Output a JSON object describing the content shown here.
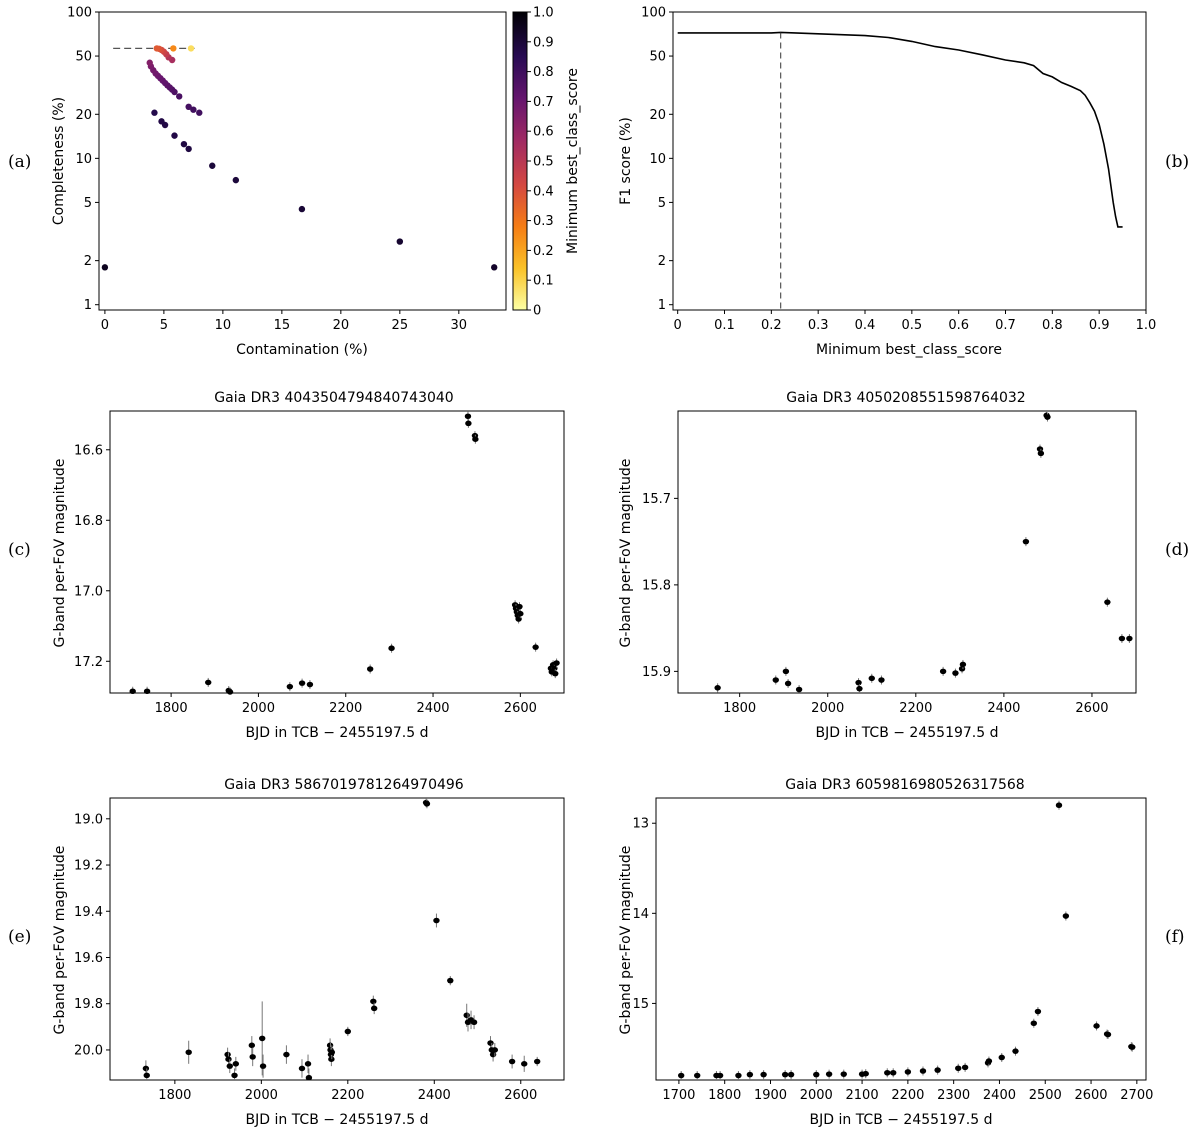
{
  "panel_labels": [
    "(a)",
    "(b)",
    "(c)",
    "(d)",
    "(e)",
    "(f)"
  ],
  "colors": {
    "axes": "#000000",
    "marker": "#000000",
    "errorbar": "#777777",
    "colormap": [
      "#fcffa4",
      "#fac228",
      "#f57d15",
      "#d44842",
      "#9f2a63",
      "#65156e",
      "#280b53",
      "#000004"
    ]
  },
  "chart_data": [
    {
      "id": "a",
      "type": "scatter",
      "title": "",
      "xlabel": "Contamination (%)",
      "ylabel": "Completeness (%)",
      "xlim": [
        -0.5,
        34
      ],
      "ylim": [
        0.92,
        100
      ],
      "yscale": "log",
      "xticks": [
        0,
        5,
        10,
        15,
        20,
        25,
        30
      ],
      "yticks": [
        1,
        2,
        5,
        10,
        20,
        50,
        100
      ],
      "reference_line": {
        "y": 56.4,
        "x": [
          0.7,
          7.6
        ],
        "style": "dashed"
      },
      "colorbar": {
        "label": "Minimum best_class_score",
        "range": [
          0,
          1
        ],
        "ticks": [
          "0",
          "0.1",
          "0.2",
          "0.3",
          "0.4",
          "0.5",
          "0.6",
          "0.7",
          "0.8",
          "0.9",
          "1.0"
        ]
      },
      "points": [
        {
          "x": 0,
          "y": 1.8,
          "c": 0.95
        },
        {
          "x": 33.0,
          "y": 1.8,
          "c": 0.93
        },
        {
          "x": 25.0,
          "y": 2.7,
          "c": 0.92
        },
        {
          "x": 16.7,
          "y": 4.5,
          "c": 0.91
        },
        {
          "x": 11.1,
          "y": 7.1,
          "c": 0.9
        },
        {
          "x": 9.1,
          "y": 8.9,
          "c": 0.9
        },
        {
          "x": 7.1,
          "y": 11.6,
          "c": 0.89
        },
        {
          "x": 6.7,
          "y": 12.5,
          "c": 0.89
        },
        {
          "x": 5.9,
          "y": 14.3,
          "c": 0.88
        },
        {
          "x": 5.1,
          "y": 16.9,
          "c": 0.88
        },
        {
          "x": 4.8,
          "y": 17.9,
          "c": 0.88
        },
        {
          "x": 4.2,
          "y": 20.5,
          "c": 0.87
        },
        {
          "x": 8.0,
          "y": 20.5,
          "c": 0.8
        },
        {
          "x": 7.5,
          "y": 21.5,
          "c": 0.8
        },
        {
          "x": 7.1,
          "y": 22.5,
          "c": 0.79
        },
        {
          "x": 6.3,
          "y": 26.5,
          "c": 0.78
        },
        {
          "x": 5.9,
          "y": 28.4,
          "c": 0.77
        },
        {
          "x": 5.7,
          "y": 29.5,
          "c": 0.76
        },
        {
          "x": 5.5,
          "y": 30.5,
          "c": 0.75
        },
        {
          "x": 5.3,
          "y": 31.5,
          "c": 0.74
        },
        {
          "x": 5.1,
          "y": 32.7,
          "c": 0.73
        },
        {
          "x": 4.9,
          "y": 34.0,
          "c": 0.72
        },
        {
          "x": 4.7,
          "y": 35.3,
          "c": 0.71
        },
        {
          "x": 4.5,
          "y": 36.6,
          "c": 0.7
        },
        {
          "x": 4.3,
          "y": 38.0,
          "c": 0.69
        },
        {
          "x": 4.1,
          "y": 40.0,
          "c": 0.68
        },
        {
          "x": 3.9,
          "y": 42.5,
          "c": 0.66
        },
        {
          "x": 3.8,
          "y": 45.0,
          "c": 0.64
        },
        {
          "x": 5.7,
          "y": 47.0,
          "c": 0.55
        },
        {
          "x": 5.4,
          "y": 49.0,
          "c": 0.52
        },
        {
          "x": 5.2,
          "y": 51.5,
          "c": 0.48
        },
        {
          "x": 5.0,
          "y": 53.5,
          "c": 0.45
        },
        {
          "x": 4.8,
          "y": 55.0,
          "c": 0.42
        },
        {
          "x": 4.6,
          "y": 56.0,
          "c": 0.4
        },
        {
          "x": 4.4,
          "y": 56.4,
          "c": 0.38
        },
        {
          "x": 5.8,
          "y": 56.4,
          "c": 0.26
        },
        {
          "x": 7.3,
          "y": 56.4,
          "c": 0.08
        }
      ]
    },
    {
      "id": "b",
      "type": "line",
      "title": "",
      "xlabel": "Minimum best_class_score",
      "ylabel": "F1 score (%)",
      "xlim": [
        -0.01,
        1.0
      ],
      "ylim": [
        0.92,
        100
      ],
      "yscale": "log",
      "xticks": [
        0,
        0.1,
        0.2,
        0.3,
        0.4,
        0.5,
        0.6,
        0.7,
        0.8,
        0.9,
        1.0
      ],
      "xticklabels": [
        "0",
        "0.1",
        "0.2",
        "0.3",
        "0.4",
        "0.5",
        "0.6",
        "0.7",
        "0.8",
        "0.9",
        "1.0"
      ],
      "yticks": [
        1,
        2,
        5,
        10,
        20,
        50,
        100
      ],
      "reference_line": {
        "x": 0.22,
        "style": "dashed"
      },
      "x": [
        0,
        0.05,
        0.1,
        0.15,
        0.2,
        0.22,
        0.25,
        0.3,
        0.35,
        0.4,
        0.45,
        0.5,
        0.55,
        0.6,
        0.65,
        0.7,
        0.74,
        0.76,
        0.78,
        0.8,
        0.82,
        0.84,
        0.86,
        0.87,
        0.88,
        0.89,
        0.9,
        0.91,
        0.92,
        0.93,
        0.935,
        0.94,
        0.95
      ],
      "y": [
        72,
        72,
        72,
        72,
        72,
        72.5,
        72,
        71,
        70,
        69,
        67,
        63,
        58,
        55,
        51,
        47,
        45,
        43,
        38,
        36,
        33,
        31,
        29,
        27,
        24,
        21,
        17,
        12.5,
        8.5,
        5.0,
        4.0,
        3.4,
        3.4
      ]
    },
    {
      "id": "c",
      "type": "scatter",
      "title": "Gaia DR3 4043504794840743040",
      "xlabel": "BJD in TCB − 2455197.5 d",
      "ylabel": "G-band per-FoV magnitude",
      "xlim": [
        1660,
        2700
      ],
      "ylim": [
        17.29,
        16.49
      ],
      "xticks": [
        1800,
        2000,
        2200,
        2400,
        2600
      ],
      "yticks": [
        16.6,
        16.8,
        17.0,
        17.2
      ],
      "yticklabels": [
        "16.6",
        "16.8",
        "17.0",
        "17.2"
      ],
      "points": [
        {
          "x": 1712,
          "y": 17.285
        },
        {
          "x": 1745,
          "y": 17.285
        },
        {
          "x": 1885,
          "y": 17.26
        },
        {
          "x": 1932,
          "y": 17.283
        },
        {
          "x": 1935,
          "y": 17.287
        },
        {
          "x": 2072,
          "y": 17.272
        },
        {
          "x": 2100,
          "y": 17.262
        },
        {
          "x": 2118,
          "y": 17.266
        },
        {
          "x": 2256,
          "y": 17.222
        },
        {
          "x": 2305,
          "y": 17.163
        },
        {
          "x": 2480,
          "y": 16.505
        },
        {
          "x": 2481,
          "y": 16.525
        },
        {
          "x": 2496,
          "y": 16.56
        },
        {
          "x": 2497,
          "y": 16.57
        },
        {
          "x": 2588,
          "y": 17.04
        },
        {
          "x": 2590,
          "y": 17.05
        },
        {
          "x": 2592,
          "y": 17.06
        },
        {
          "x": 2594,
          "y": 17.07
        },
        {
          "x": 2596,
          "y": 17.08
        },
        {
          "x": 2598,
          "y": 17.045
        },
        {
          "x": 2600,
          "y": 17.065
        },
        {
          "x": 2635,
          "y": 17.16
        },
        {
          "x": 2670,
          "y": 17.22
        },
        {
          "x": 2672,
          "y": 17.23
        },
        {
          "x": 2675,
          "y": 17.21
        },
        {
          "x": 2678,
          "y": 17.22
        },
        {
          "x": 2680,
          "y": 17.235
        },
        {
          "x": 2683,
          "y": 17.205
        }
      ]
    },
    {
      "id": "d",
      "type": "scatter",
      "title": "Gaia DR3 4050208551598764032",
      "xlabel": "BJD in TCB − 2455197.5 d",
      "ylabel": "G-band per-FoV magnitude",
      "xlim": [
        1660,
        2700
      ],
      "ylim": [
        15.925,
        15.599
      ],
      "xticks": [
        1800,
        2000,
        2200,
        2400,
        2600
      ],
      "yticks": [
        15.7,
        15.8,
        15.9
      ],
      "yticklabels": [
        "15.7",
        "15.8",
        "15.9"
      ],
      "points": [
        {
          "x": 1750,
          "y": 15.919
        },
        {
          "x": 1882,
          "y": 15.91
        },
        {
          "x": 1905,
          "y": 15.9
        },
        {
          "x": 1910,
          "y": 15.914
        },
        {
          "x": 1935,
          "y": 15.921
        },
        {
          "x": 2070,
          "y": 15.913
        },
        {
          "x": 2072,
          "y": 15.92
        },
        {
          "x": 2100,
          "y": 15.908
        },
        {
          "x": 2122,
          "y": 15.91
        },
        {
          "x": 2262,
          "y": 15.9
        },
        {
          "x": 2290,
          "y": 15.902
        },
        {
          "x": 2305,
          "y": 15.897
        },
        {
          "x": 2307,
          "y": 15.892
        },
        {
          "x": 2450,
          "y": 15.75
        },
        {
          "x": 2482,
          "y": 15.643
        },
        {
          "x": 2484,
          "y": 15.648
        },
        {
          "x": 2497,
          "y": 15.604
        },
        {
          "x": 2499,
          "y": 15.606
        },
        {
          "x": 2635,
          "y": 15.82
        },
        {
          "x": 2668,
          "y": 15.862
        },
        {
          "x": 2685,
          "y": 15.862
        }
      ]
    },
    {
      "id": "e",
      "type": "scatter",
      "title": "Gaia DR3 5867019781264970496",
      "xlabel": "BJD in TCB − 2455197.5 d",
      "ylabel": "G-band per-FoV magnitude",
      "xlim": [
        1650,
        2700
      ],
      "ylim": [
        20.13,
        18.91
      ],
      "xticks": [
        1800,
        2000,
        2200,
        2400,
        2600
      ],
      "yticks": [
        19.0,
        19.2,
        19.4,
        19.6,
        19.8,
        20.0
      ],
      "yticklabels": [
        "19.0",
        "19.2",
        "19.4",
        "19.6",
        "19.8",
        "20.0"
      ],
      "points": [
        {
          "x": 1733,
          "y": 20.08,
          "e": 0.035
        },
        {
          "x": 1735,
          "y": 20.11,
          "e": 0.03
        },
        {
          "x": 1832,
          "y": 20.01,
          "e": 0.05
        },
        {
          "x": 1922,
          "y": 20.02,
          "e": 0.03
        },
        {
          "x": 1924,
          "y": 20.04,
          "e": 0.03
        },
        {
          "x": 1927,
          "y": 20.07,
          "e": 0.03
        },
        {
          "x": 1938,
          "y": 20.11,
          "e": 0.03
        },
        {
          "x": 1941,
          "y": 20.06,
          "e": 0.03
        },
        {
          "x": 1978,
          "y": 19.98,
          "e": 0.04
        },
        {
          "x": 1980,
          "y": 20.03,
          "e": 0.04
        },
        {
          "x": 2002,
          "y": 19.95,
          "e": 0.16
        },
        {
          "x": 2004,
          "y": 20.07,
          "e": 0.05
        },
        {
          "x": 2058,
          "y": 20.02,
          "e": 0.04
        },
        {
          "x": 2094,
          "y": 20.08,
          "e": 0.04
        },
        {
          "x": 2108,
          "y": 20.06,
          "e": 0.04
        },
        {
          "x": 2110,
          "y": 20.12,
          "e": 0.04
        },
        {
          "x": 2159,
          "y": 19.98,
          "e": 0.03
        },
        {
          "x": 2160,
          "y": 20.0,
          "e": 0.03
        },
        {
          "x": 2161,
          "y": 20.02,
          "e": 0.03
        },
        {
          "x": 2162,
          "y": 20.04,
          "e": 0.03
        },
        {
          "x": 2163,
          "y": 20.01,
          "e": 0.03
        },
        {
          "x": 2200,
          "y": 19.92,
          "e": 0.02
        },
        {
          "x": 2259,
          "y": 19.79,
          "e": 0.025
        },
        {
          "x": 2261,
          "y": 19.82,
          "e": 0.025
        },
        {
          "x": 2381,
          "y": 18.93,
          "e": 0.015
        },
        {
          "x": 2383,
          "y": 18.935,
          "e": 0.015
        },
        {
          "x": 2405,
          "y": 19.44,
          "e": 0.03
        },
        {
          "x": 2437,
          "y": 19.7,
          "e": 0.02
        },
        {
          "x": 2475,
          "y": 19.85,
          "e": 0.05
        },
        {
          "x": 2478,
          "y": 19.88,
          "e": 0.04
        },
        {
          "x": 2485,
          "y": 19.87,
          "e": 0.04
        },
        {
          "x": 2492,
          "y": 19.88,
          "e": 0.03
        },
        {
          "x": 2530,
          "y": 19.97,
          "e": 0.03
        },
        {
          "x": 2533,
          "y": 20.0,
          "e": 0.03
        },
        {
          "x": 2536,
          "y": 20.02,
          "e": 0.03
        },
        {
          "x": 2540,
          "y": 20.0,
          "e": 0.03
        },
        {
          "x": 2580,
          "y": 20.05,
          "e": 0.03
        },
        {
          "x": 2608,
          "y": 20.06,
          "e": 0.035
        },
        {
          "x": 2638,
          "y": 20.05,
          "e": 0.02
        }
      ]
    },
    {
      "id": "f",
      "type": "scatter",
      "title": "Gaia DR3 6059816980526317568",
      "xlabel": "BJD in TCB − 2455197.5 d",
      "ylabel": "G-band per-FoV magnitude",
      "xlim": [
        1650,
        2720
      ],
      "ylim": [
        15.85,
        12.72
      ],
      "xticks": [
        1700,
        1800,
        1900,
        2000,
        2100,
        2200,
        2300,
        2400,
        2500,
        2600,
        2700
      ],
      "yticks": [
        13,
        14,
        15
      ],
      "yticklabels": [
        "13",
        "14",
        "15"
      ],
      "points": [
        {
          "x": 1705,
          "y": 15.8
        },
        {
          "x": 1740,
          "y": 15.8
        },
        {
          "x": 1782,
          "y": 15.8
        },
        {
          "x": 1790,
          "y": 15.8
        },
        {
          "x": 1830,
          "y": 15.8
        },
        {
          "x": 1855,
          "y": 15.79
        },
        {
          "x": 1885,
          "y": 15.79
        },
        {
          "x": 1932,
          "y": 15.79
        },
        {
          "x": 1945,
          "y": 15.79
        },
        {
          "x": 2000,
          "y": 15.79
        },
        {
          "x": 2028,
          "y": 15.785
        },
        {
          "x": 2060,
          "y": 15.785
        },
        {
          "x": 2100,
          "y": 15.785
        },
        {
          "x": 2108,
          "y": 15.78
        },
        {
          "x": 2155,
          "y": 15.77
        },
        {
          "x": 2168,
          "y": 15.77
        },
        {
          "x": 2200,
          "y": 15.76
        },
        {
          "x": 2233,
          "y": 15.75
        },
        {
          "x": 2265,
          "y": 15.74
        },
        {
          "x": 2310,
          "y": 15.72
        },
        {
          "x": 2325,
          "y": 15.71
        },
        {
          "x": 2375,
          "y": 15.66
        },
        {
          "x": 2377,
          "y": 15.64
        },
        {
          "x": 2405,
          "y": 15.6
        },
        {
          "x": 2435,
          "y": 15.53
        },
        {
          "x": 2475,
          "y": 15.22
        },
        {
          "x": 2484,
          "y": 15.09
        },
        {
          "x": 2530,
          "y": 12.8
        },
        {
          "x": 2545,
          "y": 14.03
        },
        {
          "x": 2612,
          "y": 15.25
        },
        {
          "x": 2635,
          "y": 15.34
        },
        {
          "x": 2637,
          "y": 15.345
        },
        {
          "x": 2688,
          "y": 15.48
        },
        {
          "x": 2690,
          "y": 15.485
        }
      ]
    }
  ]
}
